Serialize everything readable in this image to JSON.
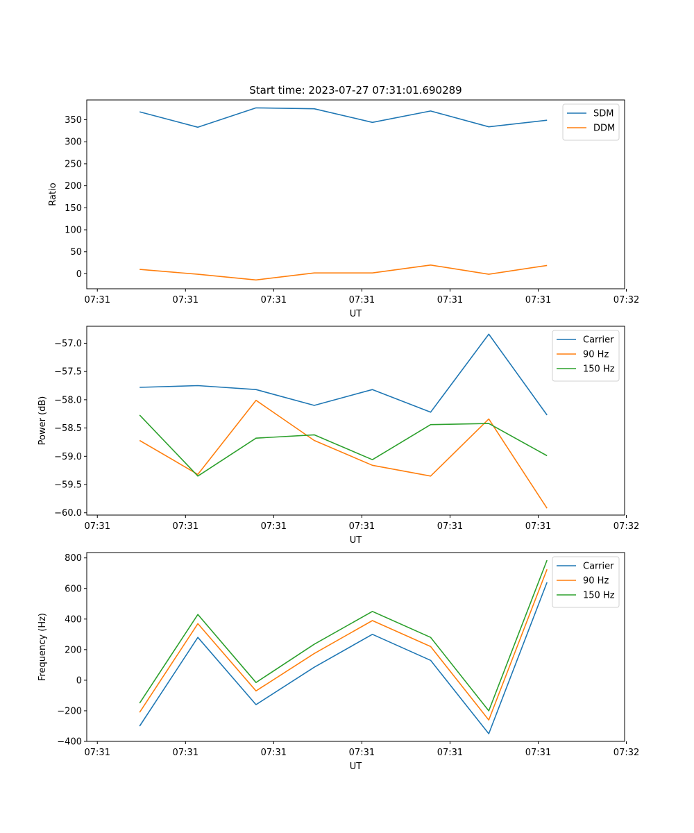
{
  "chart_data": [
    {
      "type": "line",
      "title": "Start time: 2023-07-27 07:31:01.690289",
      "xlabel": "UT",
      "ylabel": "Ratio",
      "xlim": [
        -0.5,
        5.6
      ],
      "xtick_values": [
        -0.38,
        0.62,
        1.62,
        2.62,
        3.62,
        4.62,
        5.62
      ],
      "xtick_labels": [
        "07:31",
        "07:31",
        "07:31",
        "07:31",
        "07:31",
        "07:31",
        "07:32"
      ],
      "ylim": [
        -34,
        395
      ],
      "yticks": [
        0,
        50,
        100,
        150,
        200,
        250,
        300,
        350
      ],
      "x": [
        0.1,
        0.76,
        1.42,
        2.08,
        2.74,
        3.4,
        4.06,
        4.72
      ],
      "series": [
        {
          "name": "SDM",
          "color": "#1f77b4",
          "values": [
            368,
            333,
            377,
            375,
            344,
            370,
            334,
            349
          ]
        },
        {
          "name": "DDM",
          "color": "#ff7f0e",
          "values": [
            10,
            -1,
            -14,
            2,
            2,
            20,
            -1,
            19
          ]
        }
      ]
    },
    {
      "type": "line",
      "xlabel": "UT",
      "ylabel": "Power (dB)",
      "xlim": [
        -0.5,
        5.6
      ],
      "xtick_values": [
        -0.38,
        0.62,
        1.62,
        2.62,
        3.62,
        4.62,
        5.62
      ],
      "xtick_labels": [
        "07:31",
        "07:31",
        "07:31",
        "07:31",
        "07:31",
        "07:31",
        "07:32"
      ],
      "ylim": [
        -60.04,
        -56.7
      ],
      "yticks": [
        -60.0,
        -59.5,
        -59.0,
        -58.5,
        -58.0,
        -57.5,
        -57.0
      ],
      "ytick_labels": [
        "−60.0",
        "−59.5",
        "−59.0",
        "−58.5",
        "−58.0",
        "−57.5",
        "−57.0"
      ],
      "x": [
        0.1,
        0.76,
        1.42,
        2.08,
        2.74,
        3.4,
        4.06,
        4.72
      ],
      "series": [
        {
          "name": "Carrier",
          "color": "#1f77b4",
          "values": [
            -57.78,
            -57.75,
            -57.82,
            -58.1,
            -57.82,
            -58.22,
            -56.84,
            -58.27
          ]
        },
        {
          "name": "90 Hz",
          "color": "#ff7f0e",
          "values": [
            -58.72,
            -59.32,
            -58.01,
            -58.72,
            -59.16,
            -59.35,
            -58.34,
            -59.92
          ]
        },
        {
          "name": "150 Hz",
          "color": "#2ca02c",
          "values": [
            -58.27,
            -59.35,
            -58.68,
            -58.62,
            -59.06,
            -58.44,
            -58.42,
            -58.99
          ]
        }
      ]
    },
    {
      "type": "line",
      "xlabel": "UT",
      "ylabel": "Frequency (Hz)",
      "xlim": [
        -0.5,
        5.6
      ],
      "xtick_values": [
        -0.38,
        0.62,
        1.62,
        2.62,
        3.62,
        4.62,
        5.62
      ],
      "xtick_labels": [
        "07:31",
        "07:31",
        "07:31",
        "07:31",
        "07:31",
        "07:31",
        "07:32"
      ],
      "ylim": [
        -400,
        835
      ],
      "yticks": [
        -400,
        -200,
        0,
        200,
        400,
        600,
        800
      ],
      "ytick_labels": [
        "−400",
        "−200",
        "0",
        "200",
        "400",
        "600",
        "800"
      ],
      "x": [
        0.1,
        0.76,
        1.42,
        2.08,
        2.74,
        3.4,
        4.06,
        4.72
      ],
      "series": [
        {
          "name": "Carrier",
          "color": "#1f77b4",
          "values": [
            -300,
            280,
            -160,
            85,
            300,
            130,
            -350,
            640
          ]
        },
        {
          "name": "90 Hz",
          "color": "#ff7f0e",
          "values": [
            -210,
            370,
            -70,
            175,
            390,
            220,
            -260,
            725
          ]
        },
        {
          "name": "150 Hz",
          "color": "#2ca02c",
          "values": [
            -150,
            430,
            -15,
            235,
            450,
            280,
            -200,
            785
          ]
        }
      ]
    }
  ]
}
